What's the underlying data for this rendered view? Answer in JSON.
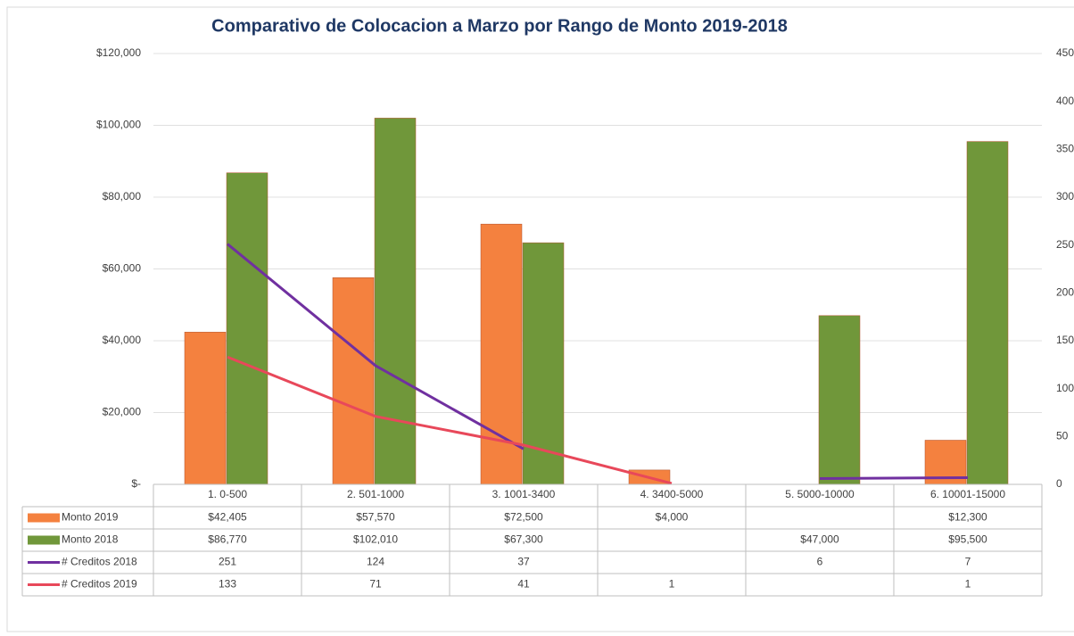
{
  "chart_data": {
    "type": "bar",
    "title": "Comparativo de Colocacion a Marzo por Rango de Monto 2019-2018",
    "categories": [
      "1. 0-500",
      "2. 501-1000",
      "3. 1001-3400",
      "4. 3400-5000",
      "5. 5000-10000",
      "6. 10001-15000"
    ],
    "series": [
      {
        "name": "Monto 2019",
        "type": "bar",
        "color": "#f4813f",
        "values": [
          42405,
          57570,
          72500,
          4000,
          null,
          12300
        ],
        "value_labels": [
          "$42,405",
          "$57,570",
          "$72,500",
          "$4,000",
          null,
          "$12,300"
        ]
      },
      {
        "name": "Monto 2018",
        "type": "bar",
        "color": "#70973a",
        "values": [
          86770,
          102010,
          67300,
          null,
          47000,
          95500
        ],
        "value_labels": [
          "$86,770",
          "$102,010",
          "$67,300",
          null,
          "$47,000",
          "$95,500"
        ]
      },
      {
        "name": "# Creditos 2018",
        "type": "line",
        "axis": "y2",
        "color": "#7030a0",
        "values": [
          251,
          124,
          37,
          null,
          6,
          7
        ]
      },
      {
        "name": "# Creditos 2019",
        "type": "line",
        "axis": "y2",
        "color": "#e8485a",
        "values": [
          133,
          71,
          41,
          1,
          null,
          1
        ]
      }
    ],
    "ylim": [
      0,
      120000
    ],
    "yticks": [
      {
        "value": 0,
        "label": "$-"
      },
      {
        "value": 20000,
        "label": "$20,000"
      },
      {
        "value": 40000,
        "label": "$40,000"
      },
      {
        "value": 60000,
        "label": "$60,000"
      },
      {
        "value": 80000,
        "label": "$80,000"
      },
      {
        "value": 100000,
        "label": "$100,000"
      },
      {
        "value": 120000,
        "label": "$120,000"
      }
    ],
    "y2lim": [
      0,
      450
    ],
    "y2ticks": [
      0,
      50,
      100,
      150,
      200,
      250,
      300,
      350,
      400,
      450
    ],
    "grid": true
  }
}
